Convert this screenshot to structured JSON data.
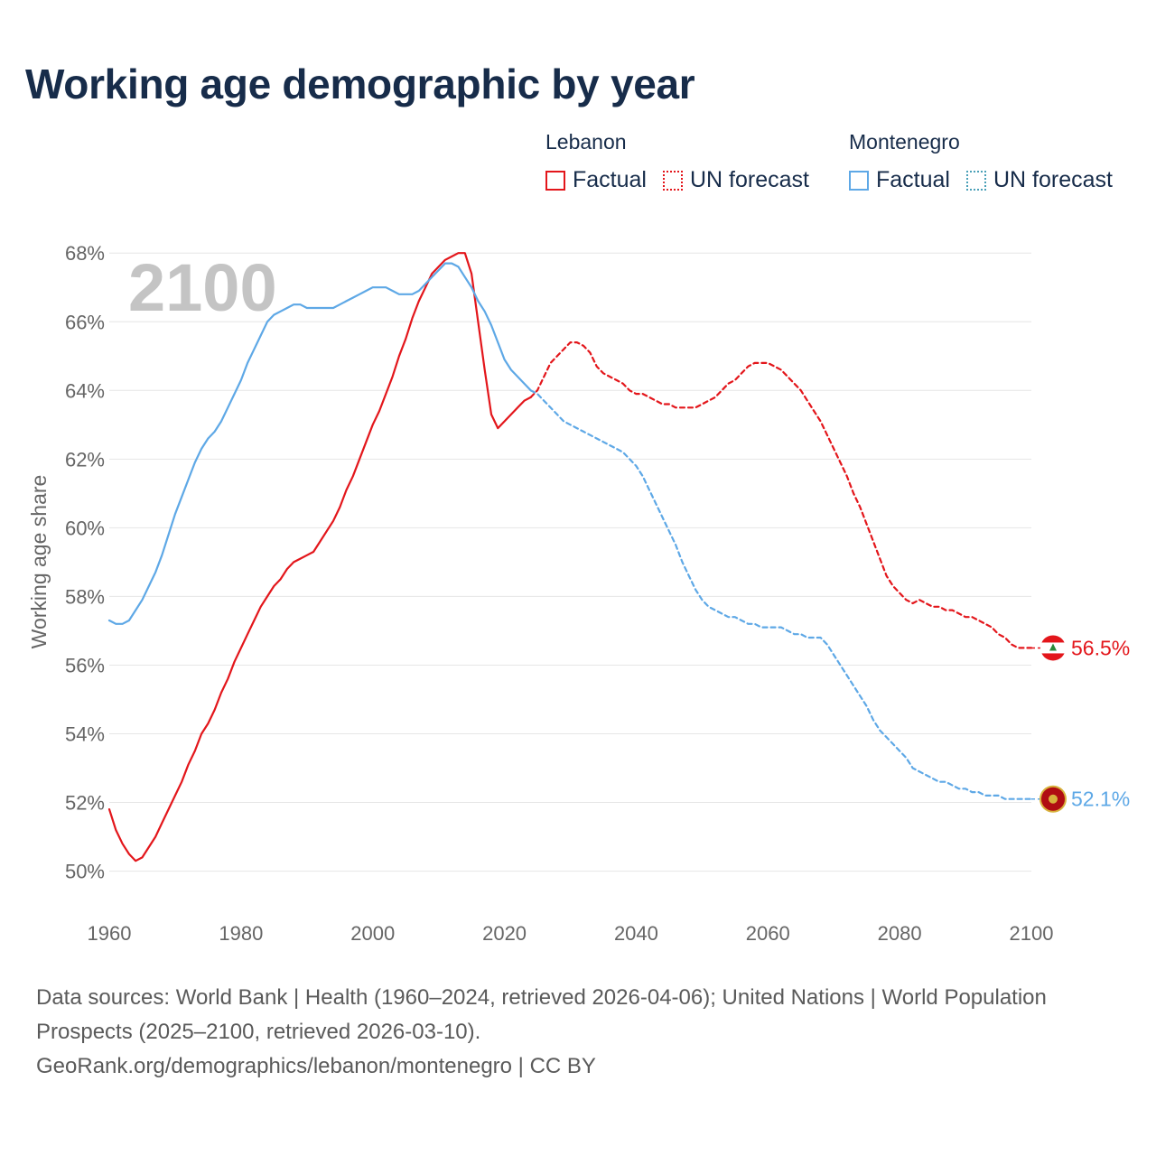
{
  "title": "Working age demographic by year",
  "year_watermark": "2100",
  "legend": {
    "lebanon": {
      "name": "Lebanon",
      "factual": "Factual",
      "forecast": "UN forecast"
    },
    "montenegro": {
      "name": "Montenegro",
      "factual": "Factual",
      "forecast": "UN forecast"
    }
  },
  "footer": {
    "line1": "Data sources: World Bank | Health (1960–2024, retrieved 2026-04-06); United Nations | World Population Prospects (2025–2100, retrieved 2026-03-10).",
    "line2": "GeoRank.org/demographics/lebanon/montenegro | CC BY"
  },
  "colors": {
    "lebanon": "#e3161b",
    "montenegro": "#5ea8e6",
    "grid": "#e6e6e6",
    "axis_text": "#666666",
    "watermark": "#c4c4c4"
  },
  "chart_data": {
    "type": "line",
    "title": "Working age demographic by year",
    "xlabel": "",
    "ylabel": "Working age share",
    "xlim": [
      1960,
      2100
    ],
    "ylim": [
      49.2,
      68.4
    ],
    "x_ticks": [
      1960,
      1980,
      2000,
      2020,
      2040,
      2060,
      2080,
      2100
    ],
    "y_ticks": [
      50,
      52,
      54,
      56,
      58,
      60,
      62,
      64,
      66,
      68
    ],
    "y_tick_suffix": "%",
    "series": [
      {
        "name": "Lebanon",
        "segment": "Factual",
        "style": "solid",
        "x": [
          1960,
          1961,
          1962,
          1963,
          1964,
          1965,
          1966,
          1967,
          1968,
          1969,
          1970,
          1971,
          1972,
          1973,
          1974,
          1975,
          1976,
          1977,
          1978,
          1979,
          1980,
          1981,
          1982,
          1983,
          1984,
          1985,
          1986,
          1987,
          1988,
          1989,
          1990,
          1991,
          1992,
          1993,
          1994,
          1995,
          1996,
          1997,
          1998,
          1999,
          2000,
          2001,
          2002,
          2003,
          2004,
          2005,
          2006,
          2007,
          2008,
          2009,
          2010,
          2011,
          2012,
          2013,
          2014,
          2015,
          2016,
          2017,
          2018,
          2019,
          2020,
          2021,
          2022,
          2023,
          2024
        ],
        "values": [
          51.8,
          51.2,
          50.8,
          50.5,
          50.3,
          50.4,
          50.7,
          51.0,
          51.4,
          51.8,
          52.2,
          52.6,
          53.1,
          53.5,
          54.0,
          54.3,
          54.7,
          55.2,
          55.6,
          56.1,
          56.5,
          56.9,
          57.3,
          57.7,
          58.0,
          58.3,
          58.5,
          58.8,
          59.0,
          59.1,
          59.2,
          59.3,
          59.6,
          59.9,
          60.2,
          60.6,
          61.1,
          61.5,
          62.0,
          62.5,
          63.0,
          63.4,
          63.9,
          64.4,
          65.0,
          65.5,
          66.1,
          66.6,
          67.0,
          67.4,
          67.6,
          67.8,
          67.9,
          68.0,
          68.0,
          67.4,
          66.0,
          64.6,
          63.3,
          62.9,
          63.1,
          63.3,
          63.5,
          63.7,
          63.8
        ]
      },
      {
        "name": "Lebanon",
        "segment": "UN forecast",
        "style": "dashed",
        "end_label": "56.5%",
        "x": [
          2024,
          2025,
          2026,
          2027,
          2028,
          2029,
          2030,
          2031,
          2032,
          2033,
          2034,
          2035,
          2036,
          2037,
          2038,
          2039,
          2040,
          2041,
          2042,
          2043,
          2044,
          2045,
          2046,
          2047,
          2048,
          2049,
          2050,
          2051,
          2052,
          2053,
          2054,
          2055,
          2056,
          2057,
          2058,
          2059,
          2060,
          2061,
          2062,
          2063,
          2064,
          2065,
          2066,
          2067,
          2068,
          2069,
          2070,
          2071,
          2072,
          2073,
          2074,
          2075,
          2076,
          2077,
          2078,
          2079,
          2080,
          2081,
          2082,
          2083,
          2084,
          2085,
          2086,
          2087,
          2088,
          2089,
          2090,
          2091,
          2092,
          2093,
          2094,
          2095,
          2096,
          2097,
          2098,
          2099,
          2100
        ],
        "values": [
          63.8,
          64.0,
          64.4,
          64.8,
          65.0,
          65.2,
          65.4,
          65.4,
          65.3,
          65.1,
          64.7,
          64.5,
          64.4,
          64.3,
          64.2,
          64.0,
          63.9,
          63.9,
          63.8,
          63.7,
          63.6,
          63.6,
          63.5,
          63.5,
          63.5,
          63.5,
          63.6,
          63.7,
          63.8,
          64.0,
          64.2,
          64.3,
          64.5,
          64.7,
          64.8,
          64.8,
          64.8,
          64.7,
          64.6,
          64.4,
          64.2,
          64.0,
          63.7,
          63.4,
          63.1,
          62.7,
          62.3,
          61.9,
          61.5,
          61.0,
          60.6,
          60.1,
          59.6,
          59.1,
          58.6,
          58.3,
          58.1,
          57.9,
          57.8,
          57.9,
          57.8,
          57.7,
          57.7,
          57.6,
          57.6,
          57.5,
          57.4,
          57.4,
          57.3,
          57.2,
          57.1,
          56.9,
          56.8,
          56.6,
          56.5,
          56.5,
          56.5
        ]
      },
      {
        "name": "Montenegro",
        "segment": "Factual",
        "style": "solid",
        "x": [
          1960,
          1961,
          1962,
          1963,
          1964,
          1965,
          1966,
          1967,
          1968,
          1969,
          1970,
          1971,
          1972,
          1973,
          1974,
          1975,
          1976,
          1977,
          1978,
          1979,
          1980,
          1981,
          1982,
          1983,
          1984,
          1985,
          1986,
          1987,
          1988,
          1989,
          1990,
          1991,
          1992,
          1993,
          1994,
          1995,
          1996,
          1997,
          1998,
          1999,
          2000,
          2001,
          2002,
          2003,
          2004,
          2005,
          2006,
          2007,
          2008,
          2009,
          2010,
          2011,
          2012,
          2013,
          2014,
          2015,
          2016,
          2017,
          2018,
          2019,
          2020,
          2021,
          2022,
          2023,
          2024
        ],
        "values": [
          57.3,
          57.2,
          57.2,
          57.3,
          57.6,
          57.9,
          58.3,
          58.7,
          59.2,
          59.8,
          60.4,
          60.9,
          61.4,
          61.9,
          62.3,
          62.6,
          62.8,
          63.1,
          63.5,
          63.9,
          64.3,
          64.8,
          65.2,
          65.6,
          66.0,
          66.2,
          66.3,
          66.4,
          66.5,
          66.5,
          66.4,
          66.4,
          66.4,
          66.4,
          66.4,
          66.5,
          66.6,
          66.7,
          66.8,
          66.9,
          67.0,
          67.0,
          67.0,
          66.9,
          66.8,
          66.8,
          66.8,
          66.9,
          67.1,
          67.3,
          67.5,
          67.7,
          67.7,
          67.6,
          67.3,
          67.0,
          66.6,
          66.3,
          65.9,
          65.4,
          64.9,
          64.6,
          64.4,
          64.2,
          64.0
        ]
      },
      {
        "name": "Montenegro",
        "segment": "UN forecast",
        "style": "dashed",
        "end_label": "52.1%",
        "x": [
          2024,
          2025,
          2026,
          2027,
          2028,
          2029,
          2030,
          2031,
          2032,
          2033,
          2034,
          2035,
          2036,
          2037,
          2038,
          2039,
          2040,
          2041,
          2042,
          2043,
          2044,
          2045,
          2046,
          2047,
          2048,
          2049,
          2050,
          2051,
          2052,
          2053,
          2054,
          2055,
          2056,
          2057,
          2058,
          2059,
          2060,
          2061,
          2062,
          2063,
          2064,
          2065,
          2066,
          2067,
          2068,
          2069,
          2070,
          2071,
          2072,
          2073,
          2074,
          2075,
          2076,
          2077,
          2078,
          2079,
          2080,
          2081,
          2082,
          2083,
          2084,
          2085,
          2086,
          2087,
          2088,
          2089,
          2090,
          2091,
          2092,
          2093,
          2094,
          2095,
          2096,
          2097,
          2098,
          2099,
          2100
        ],
        "values": [
          64.0,
          63.9,
          63.7,
          63.5,
          63.3,
          63.1,
          63.0,
          62.9,
          62.8,
          62.7,
          62.6,
          62.5,
          62.4,
          62.3,
          62.2,
          62.0,
          61.8,
          61.5,
          61.1,
          60.7,
          60.3,
          59.9,
          59.5,
          59.0,
          58.6,
          58.2,
          57.9,
          57.7,
          57.6,
          57.5,
          57.4,
          57.4,
          57.3,
          57.2,
          57.2,
          57.1,
          57.1,
          57.1,
          57.1,
          57.0,
          56.9,
          56.9,
          56.8,
          56.8,
          56.8,
          56.6,
          56.3,
          56.0,
          55.7,
          55.4,
          55.1,
          54.8,
          54.4,
          54.1,
          53.9,
          53.7,
          53.5,
          53.3,
          53.0,
          52.9,
          52.8,
          52.7,
          52.6,
          52.6,
          52.5,
          52.4,
          52.4,
          52.3,
          52.3,
          52.2,
          52.2,
          52.2,
          52.1,
          52.1,
          52.1,
          52.1,
          52.1
        ]
      }
    ]
  }
}
